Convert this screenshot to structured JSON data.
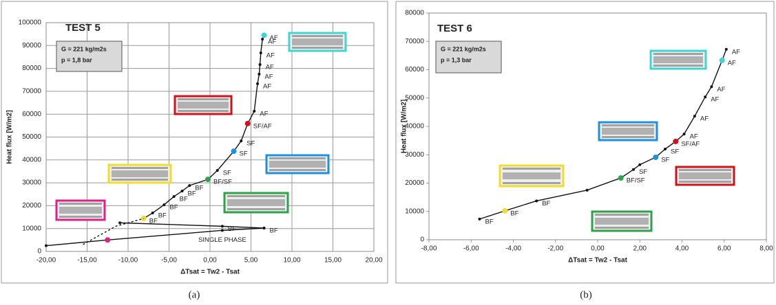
{
  "chart_data": [
    {
      "type": "line",
      "title": "TEST 5",
      "box_lines": [
        "G = 221 kg/m2s",
        "p = 1,8 bar"
      ],
      "xlabel": "ΔTsat = Tw2 - Tsat",
      "ylabel": "Heat flux [W/m2]",
      "caption": "(a)",
      "grid": true,
      "xlim": [
        -20,
        20
      ],
      "xticks": [
        {
          "value": -20,
          "label": "-20,00"
        },
        {
          "value": -15,
          "label": "-15,00"
        },
        {
          "value": -10,
          "label": "-10,00"
        },
        {
          "value": -5,
          "label": "-5,00"
        },
        {
          "value": 0,
          "label": "0,00"
        },
        {
          "value": 5,
          "label": "5,00"
        },
        {
          "value": 10,
          "label": "10,00"
        },
        {
          "value": 15,
          "label": "15,00"
        },
        {
          "value": 20,
          "label": "20,00"
        }
      ],
      "ylim": [
        0,
        100000
      ],
      "yticks": [
        0,
        10000,
        20000,
        30000,
        40000,
        50000,
        60000,
        70000,
        80000,
        90000,
        100000
      ],
      "series": [
        {
          "color": "#111111",
          "dash": false,
          "x": [
            -8.1,
            -7.0,
            -5.6,
            -4.4,
            -3.4,
            -2.5,
            -0.25,
            0.9,
            2.9,
            3.8,
            4.6,
            5.4,
            5.8,
            6.0,
            6.1,
            6.2,
            6.4,
            6.6
          ],
          "values": [
            14400,
            16800,
            20400,
            24000,
            26400,
            28800,
            31500,
            35400,
            43800,
            48300,
            55900,
            61300,
            73300,
            77500,
            81700,
            86800,
            92800,
            94500
          ],
          "point_labels": [
            "BF",
            "BF",
            "BF",
            "BF",
            "BF",
            "BF",
            "BF/SF",
            "SF",
            "SF",
            "SF",
            "SF/AF",
            "AF",
            "AF",
            "AF",
            "AF",
            "AF",
            "AF",
            "AF"
          ],
          "point_colors": [
            "#f2dc2e",
            null,
            null,
            null,
            null,
            null,
            "#2ca34a",
            null,
            "#1e90e0",
            null,
            "#d0121b",
            null,
            null,
            null,
            null,
            null,
            null,
            "#3fd6d0"
          ]
        },
        {
          "color": "#111111",
          "dash": true,
          "x": [
            -15.5,
            -11.5,
            -8.1
          ],
          "values": [
            3000,
            11000,
            14400
          ],
          "point_labels": [
            null,
            null,
            null
          ],
          "point_colors": [
            null,
            null,
            null
          ]
        },
        {
          "color": "#111111",
          "dash": false,
          "x": [
            -20,
            -12.5,
            1.5,
            6.6
          ],
          "values": [
            2500,
            5000,
            9200,
            10200
          ],
          "point_labels": [
            null,
            null,
            "SINGLE PHASE",
            null
          ],
          "point_colors": [
            null,
            "#e0208a",
            null,
            null
          ]
        },
        {
          "color": "#111111",
          "dash": false,
          "x": [
            -11,
            1.5,
            6.6
          ],
          "values": [
            12500,
            11000,
            10200
          ],
          "point_labels": [
            null,
            "BF",
            "BF"
          ],
          "point_colors": [
            null,
            null,
            null
          ]
        }
      ]
    },
    {
      "type": "line",
      "title": "TEST 6",
      "box_lines": [
        "G = 221 kg/m2s",
        "p = 1,3 bar"
      ],
      "xlabel": "ΔTsat = Tw2 - Tsat",
      "ylabel": "Heat flux [W/m2]",
      "caption": "(b)",
      "grid": false,
      "xlim": [
        -8,
        8
      ],
      "xticks": [
        {
          "value": -8,
          "label": "-8,00"
        },
        {
          "value": -6,
          "label": "-6,00"
        },
        {
          "value": -4,
          "label": "-4,00"
        },
        {
          "value": -2,
          "label": "-2,00"
        },
        {
          "value": 0,
          "label": "0,00"
        },
        {
          "value": 2,
          "label": "2,00"
        },
        {
          "value": 4,
          "label": "4,00"
        },
        {
          "value": 6,
          "label": "6,00"
        },
        {
          "value": 8,
          "label": "8,00"
        }
      ],
      "ylim": [
        0,
        80000
      ],
      "yticks": [
        0,
        10000,
        20000,
        30000,
        40000,
        50000,
        60000,
        70000,
        80000
      ],
      "series": [
        {
          "color": "#111111",
          "dash": false,
          "x": [
            -5.6,
            -4.4,
            -2.9,
            -0.5,
            1.1,
            1.7,
            2.0,
            2.75,
            3.2,
            3.7,
            4.1,
            4.6,
            5.1,
            5.4,
            5.9,
            6.1
          ],
          "values": [
            7300,
            10200,
            13700,
            17500,
            21800,
            24800,
            26500,
            29100,
            32000,
            34700,
            37300,
            43600,
            50400,
            54000,
            63300,
            67200
          ],
          "point_labels": [
            "BF",
            "BF",
            "BF",
            null,
            "BF/SF",
            "SF",
            null,
            "SF",
            "SF",
            "SF/AF",
            "AF",
            "AF",
            "AF",
            "AF",
            "AF",
            "AF"
          ],
          "point_colors": [
            null,
            "#f2dc2e",
            null,
            null,
            "#2ca34a",
            null,
            null,
            "#1e90e0",
            null,
            "#d0121b",
            null,
            null,
            null,
            null,
            "#3fd6d0",
            null
          ]
        }
      ]
    }
  ]
}
